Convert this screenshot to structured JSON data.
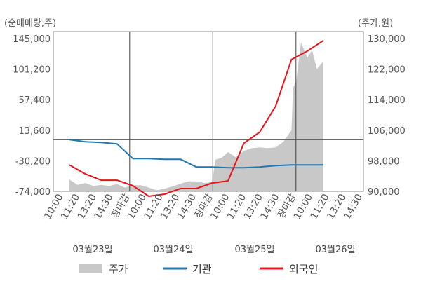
{
  "chart_data": {
    "type": "line",
    "left_axis": {
      "unit_label": "(순매매량,주)",
      "ticks": [
        145000,
        101200,
        57400,
        13600,
        -30200,
        -74000
      ],
      "tick_labels": [
        "145,000",
        "101,200",
        "57,400",
        "13,600",
        "-30,200",
        "-74,000"
      ],
      "range": [
        -74000,
        145000
      ]
    },
    "right_axis": {
      "unit_label": "(주가,원)",
      "ticks": [
        130000,
        122000,
        114000,
        106000,
        98000,
        90000
      ],
      "tick_labels": [
        "130,000",
        "122,000",
        "114,000",
        "106,000",
        "98,000",
        "90,000"
      ],
      "range": [
        90000,
        130000
      ]
    },
    "x_ticks": [
      {
        "label": "10:00",
        "closing": false
      },
      {
        "label": "11:20",
        "closing": false
      },
      {
        "label": "13:20",
        "closing": false
      },
      {
        "label": "14:30",
        "closing": false
      },
      {
        "label": "장마감",
        "closing": true
      },
      {
        "label": "10:00",
        "closing": false
      },
      {
        "label": "11:20",
        "closing": false
      },
      {
        "label": "13:20",
        "closing": false
      },
      {
        "label": "14:30",
        "closing": false
      },
      {
        "label": "장마감",
        "closing": true
      },
      {
        "label": "10:00",
        "closing": false
      },
      {
        "label": "11:20",
        "closing": false
      },
      {
        "label": "13:20",
        "closing": false
      },
      {
        "label": "14:30",
        "closing": false
      },
      {
        "label": "장마감",
        "closing": true
      },
      {
        "label": "10:00",
        "closing": false
      },
      {
        "label": "11:20",
        "closing": false
      },
      {
        "label": "13:20",
        "closing": false
      },
      {
        "label": "14:30",
        "closing": false
      }
    ],
    "dates": [
      "03월23일",
      "03월24일",
      "03월25일",
      "03월26일"
    ],
    "colors": {
      "price_area": "#c8c8c8",
      "institution": "#1f77b4",
      "foreign": "#e8141b",
      "closing_label": "#e8141b",
      "zero_line": "#555555"
    },
    "series": [
      {
        "name": "기관",
        "axis": "left",
        "x": [
          0,
          1,
          2,
          3,
          4,
          5,
          6,
          7,
          8,
          9,
          10,
          11,
          12,
          13,
          14,
          15,
          16
        ],
        "values": [
          0,
          -3000,
          -4000,
          -6000,
          -27000,
          -27000,
          -28000,
          -28000,
          -39000,
          -39000,
          -40000,
          -40000,
          -39000,
          -37000,
          -36000,
          -36000,
          -36000
        ]
      },
      {
        "name": "외국인",
        "axis": "left",
        "x": [
          0,
          1,
          2,
          3,
          4,
          5,
          6,
          7,
          8,
          9,
          10,
          11,
          12,
          13,
          14,
          15,
          16
        ],
        "values": [
          -36000,
          -49000,
          -58000,
          -58000,
          -66000,
          -81000,
          -78000,
          -70000,
          -70000,
          -62000,
          -59000,
          -5000,
          11000,
          48000,
          115000,
          127000,
          142000
        ]
      },
      {
        "name": "주가",
        "axis": "right",
        "type": "area",
        "x": [
          0,
          0.5,
          1,
          1.5,
          2,
          2.5,
          3,
          3.5,
          4,
          4.5,
          5,
          5.5,
          6,
          6.5,
          7,
          7.5,
          8,
          8.5,
          9,
          9.2,
          9.6,
          10,
          10.5,
          11,
          11.5,
          12,
          12.5,
          13,
          13.5,
          14,
          14.1,
          14.3,
          14.6,
          15,
          15.3,
          15.6,
          16
        ],
        "values": [
          93100,
          91700,
          92200,
          91400,
          91700,
          91400,
          91900,
          91000,
          91600,
          91600,
          91000,
          90300,
          90700,
          91300,
          92000,
          92600,
          92600,
          92200,
          92400,
          98300,
          98800,
          100300,
          98900,
          100600,
          101300,
          101500,
          101300,
          101500,
          103000,
          106000,
          117000,
          119000,
          129000,
          125000,
          127000,
          122000,
          124000
        ]
      }
    ],
    "legend": [
      {
        "label": "주가",
        "kind": "area"
      },
      {
        "label": "기관",
        "kind": "line"
      },
      {
        "label": "외국인",
        "kind": "line"
      }
    ],
    "legend_position": "bottom",
    "grid": "vertical separators at each closing"
  }
}
